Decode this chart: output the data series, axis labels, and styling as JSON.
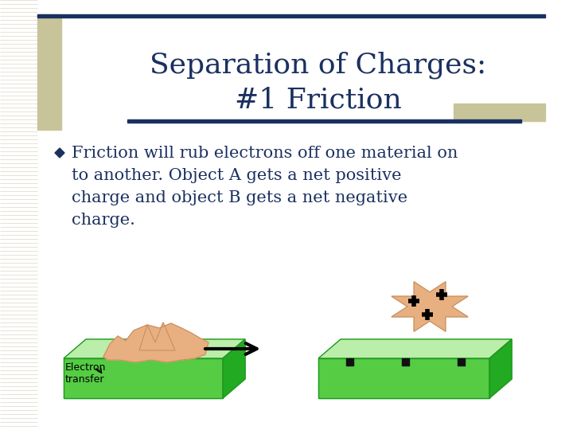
{
  "bg_color": "#ffffff",
  "title_line1": "Separation of Charges:",
  "title_line2": "#1 Friction",
  "title_color": "#1a3060",
  "title_fontsize": 26,
  "accent_bar_color": "#c8c49a",
  "top_bar_color": "#1a3060",
  "bullet_text_lines": [
    "Friction will rub electrons off one material on",
    "to another. Object A gets a net positive",
    "charge and object B gets a net negative",
    "charge."
  ],
  "bullet_color": "#1a3060",
  "bullet_fontsize": 15,
  "bullet_diamond_color": "#1a3060",
  "green_top_color": "#aae8aa",
  "green_front_color": "#44cc44",
  "green_side_color": "#22aa22",
  "green_edge_color": "#229922",
  "skin_color": "#e8b080",
  "skin_dark": "#c89060",
  "label_fontsize": 9,
  "accent_right_color": "#c8c49a"
}
